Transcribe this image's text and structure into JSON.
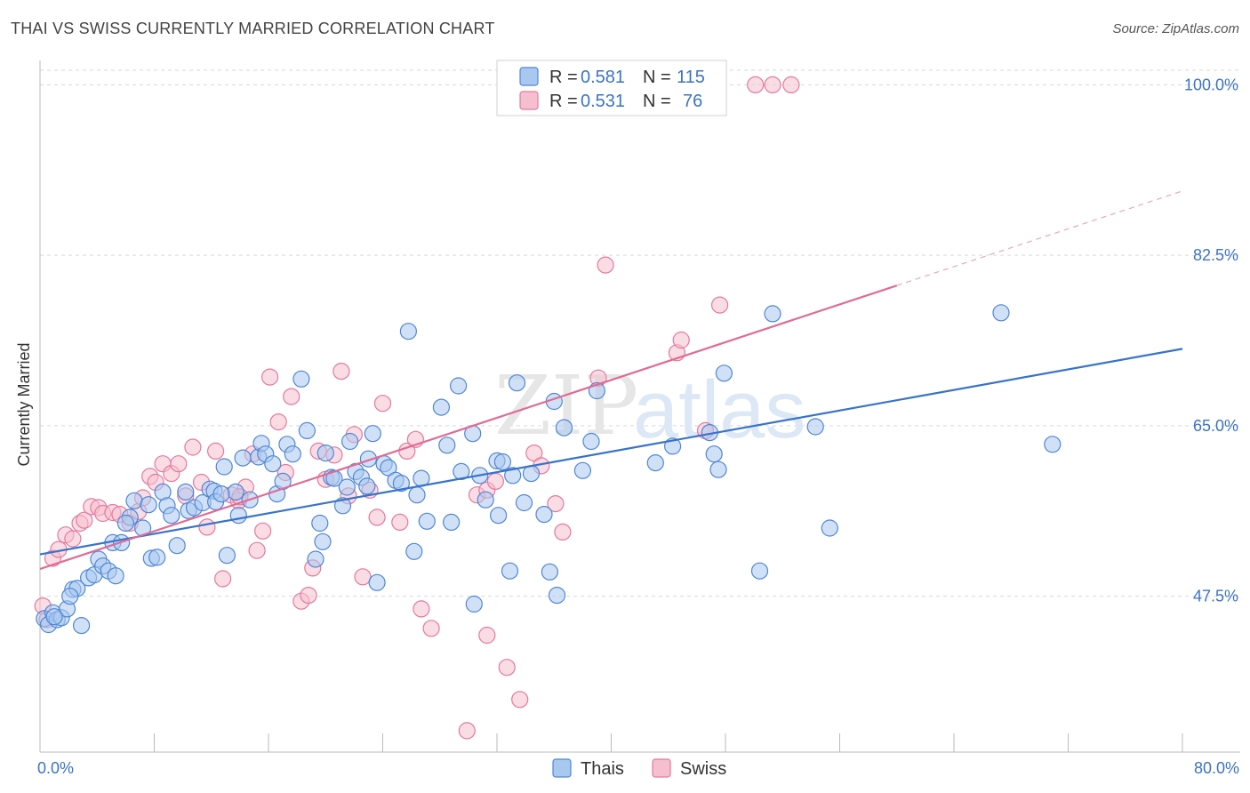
{
  "header": {
    "title": "THAI VS SWISS CURRENTLY MARRIED CORRELATION CHART",
    "source": "Source: ZipAtlas.com"
  },
  "legend": {
    "r_label": "R =",
    "n_label": "N =",
    "thais_r": "0.581",
    "thais_n": "115",
    "swiss_r": "0.531",
    "swiss_n": "76"
  },
  "bottom_legend": {
    "thais": "Thais",
    "swiss": "Swiss"
  },
  "watermark": {
    "zip": "ZIP",
    "atlas": "atlas"
  },
  "colors": {
    "thais_fill": "#a9c8f0",
    "thais_stroke": "#4f87d4",
    "thais_line": "#3673cc",
    "swiss_fill": "#f6bfd0",
    "swiss_stroke": "#e5799d",
    "swiss_line": "#e06b95",
    "grid": "#d9d9d9",
    "tick": "#3b73c8"
  },
  "chart_data": {
    "type": "scatter",
    "title": "THAI VS SWISS CURRENTLY MARRIED CORRELATION CHART",
    "xlabel": "",
    "ylabel": "Currently Married",
    "xlim": [
      0,
      80
    ],
    "ylim": [
      31.5,
      101.5
    ],
    "x_tick_labels": [
      {
        "value": 0,
        "label": "0.0%"
      },
      {
        "value": 80,
        "label": "80.0%"
      }
    ],
    "y_tick_labels": [
      {
        "value": 47.5,
        "label": "47.5%"
      },
      {
        "value": 65.0,
        "label": "65.0%"
      },
      {
        "value": 82.5,
        "label": "82.5%"
      },
      {
        "value": 100.0,
        "label": "100.0%"
      }
    ],
    "y_gridlines": [
      47.5,
      65.0,
      82.5,
      100.0,
      101.5
    ],
    "series": [
      {
        "name": "Thais",
        "R": 0.581,
        "N": 115,
        "trend": {
          "x": [
            0,
            80
          ],
          "y": [
            51.8,
            72.9
          ],
          "dashed_after": null
        },
        "points": [
          [
            0.3,
            45.2
          ],
          [
            0.6,
            44.6
          ],
          [
            0.9,
            45.8
          ],
          [
            1.2,
            45.1
          ],
          [
            1.5,
            45.3
          ],
          [
            1.9,
            46.2
          ],
          [
            2.3,
            48.2
          ],
          [
            2.6,
            48.3
          ],
          [
            2.9,
            44.5
          ],
          [
            3.4,
            49.4
          ],
          [
            3.8,
            49.7
          ],
          [
            4.1,
            51.3
          ],
          [
            4.4,
            50.6
          ],
          [
            4.8,
            50.1
          ],
          [
            5.3,
            49.6
          ],
          [
            5.1,
            53.0
          ],
          [
            5.7,
            53.0
          ],
          [
            6.3,
            55.6
          ],
          [
            6.6,
            57.3
          ],
          [
            7.2,
            54.5
          ],
          [
            7.8,
            51.4
          ],
          [
            8.2,
            51.5
          ],
          [
            8.6,
            58.2
          ],
          [
            8.9,
            56.8
          ],
          [
            9.2,
            55.8
          ],
          [
            9.6,
            52.7
          ],
          [
            10.2,
            58.2
          ],
          [
            10.4,
            56.3
          ],
          [
            10.8,
            56.6
          ],
          [
            11.4,
            57.1
          ],
          [
            11.9,
            58.5
          ],
          [
            12.2,
            58.3
          ],
          [
            12.3,
            57.2
          ],
          [
            12.9,
            60.8
          ],
          [
            13.1,
            51.7
          ],
          [
            13.7,
            58.2
          ],
          [
            13.9,
            55.8
          ],
          [
            14.2,
            61.7
          ],
          [
            14.7,
            57.4
          ],
          [
            15.3,
            61.8
          ],
          [
            15.5,
            63.2
          ],
          [
            15.8,
            62.1
          ],
          [
            16.3,
            61.1
          ],
          [
            16.6,
            58.0
          ],
          [
            17.0,
            59.3
          ],
          [
            17.3,
            63.1
          ],
          [
            17.7,
            62.1
          ],
          [
            18.3,
            69.8
          ],
          [
            18.7,
            64.5
          ],
          [
            19.3,
            51.3
          ],
          [
            19.6,
            55.0
          ],
          [
            19.8,
            53.1
          ],
          [
            20.0,
            62.2
          ],
          [
            20.4,
            59.7
          ],
          [
            20.6,
            59.6
          ],
          [
            21.2,
            56.8
          ],
          [
            21.5,
            58.7
          ],
          [
            21.7,
            63.4
          ],
          [
            22.1,
            60.3
          ],
          [
            22.5,
            59.7
          ],
          [
            22.9,
            58.8
          ],
          [
            23.0,
            61.6
          ],
          [
            23.3,
            64.2
          ],
          [
            23.6,
            48.9
          ],
          [
            24.1,
            61.1
          ],
          [
            24.4,
            60.7
          ],
          [
            24.9,
            59.4
          ],
          [
            25.3,
            59.1
          ],
          [
            25.8,
            74.7
          ],
          [
            26.2,
            52.1
          ],
          [
            26.4,
            57.9
          ],
          [
            26.7,
            59.6
          ],
          [
            27.1,
            55.2
          ],
          [
            28.1,
            66.9
          ],
          [
            28.5,
            63.0
          ],
          [
            28.8,
            55.1
          ],
          [
            29.3,
            69.1
          ],
          [
            29.5,
            60.3
          ],
          [
            30.3,
            64.2
          ],
          [
            30.4,
            46.7
          ],
          [
            30.8,
            59.9
          ],
          [
            31.2,
            57.4
          ],
          [
            32.0,
            61.4
          ],
          [
            32.4,
            61.3
          ],
          [
            32.1,
            55.8
          ],
          [
            32.9,
            50.1
          ],
          [
            33.1,
            59.9
          ],
          [
            33.4,
            69.4
          ],
          [
            33.9,
            57.1
          ],
          [
            34.4,
            60.1
          ],
          [
            35.3,
            55.9
          ],
          [
            35.7,
            50.0
          ],
          [
            36.0,
            67.5
          ],
          [
            36.2,
            47.6
          ],
          [
            36.7,
            64.8
          ],
          [
            38.0,
            60.4
          ],
          [
            38.6,
            63.4
          ],
          [
            39.0,
            68.6
          ],
          [
            43.1,
            61.2
          ],
          [
            44.3,
            62.9
          ],
          [
            46.9,
            64.3
          ],
          [
            47.2,
            62.1
          ],
          [
            47.5,
            60.5
          ],
          [
            47.9,
            70.4
          ],
          [
            50.4,
            50.1
          ],
          [
            51.3,
            76.5
          ],
          [
            54.3,
            64.9
          ],
          [
            55.3,
            54.5
          ],
          [
            67.3,
            76.6
          ],
          [
            70.9,
            63.1
          ],
          [
            12.7,
            58.0
          ],
          [
            7.6,
            56.9
          ],
          [
            2.1,
            47.5
          ],
          [
            1.0,
            45.4
          ],
          [
            6.0,
            55.0
          ]
        ]
      },
      {
        "name": "Swiss",
        "R": 0.531,
        "N": 76,
        "trend": {
          "x": [
            0,
            80
          ],
          "y": [
            50.3,
            89.1
          ],
          "dashed_after": 60
        },
        "points": [
          [
            0.2,
            46.5
          ],
          [
            0.5,
            45.1
          ],
          [
            0.9,
            51.4
          ],
          [
            1.3,
            52.3
          ],
          [
            1.8,
            53.8
          ],
          [
            2.3,
            53.4
          ],
          [
            2.8,
            55.0
          ],
          [
            3.1,
            55.3
          ],
          [
            3.6,
            56.7
          ],
          [
            4.1,
            56.6
          ],
          [
            4.4,
            56.0
          ],
          [
            5.1,
            56.1
          ],
          [
            5.6,
            55.9
          ],
          [
            6.3,
            55.0
          ],
          [
            6.9,
            56.2
          ],
          [
            7.2,
            57.6
          ],
          [
            7.7,
            59.8
          ],
          [
            8.1,
            59.2
          ],
          [
            8.6,
            61.1
          ],
          [
            9.2,
            60.1
          ],
          [
            9.7,
            61.1
          ],
          [
            10.2,
            57.8
          ],
          [
            10.7,
            62.8
          ],
          [
            11.3,
            59.2
          ],
          [
            11.7,
            54.6
          ],
          [
            12.3,
            62.4
          ],
          [
            12.8,
            49.3
          ],
          [
            13.4,
            57.9
          ],
          [
            13.9,
            57.3
          ],
          [
            14.4,
            58.7
          ],
          [
            14.9,
            62.1
          ],
          [
            15.2,
            52.2
          ],
          [
            15.6,
            54.2
          ],
          [
            16.1,
            70.0
          ],
          [
            16.7,
            65.4
          ],
          [
            17.2,
            60.2
          ],
          [
            17.6,
            68.0
          ],
          [
            18.3,
            47.0
          ],
          [
            18.8,
            47.6
          ],
          [
            19.1,
            50.4
          ],
          [
            19.5,
            62.4
          ],
          [
            20.0,
            59.5
          ],
          [
            20.6,
            62.0
          ],
          [
            21.1,
            70.6
          ],
          [
            21.6,
            57.8
          ],
          [
            22.0,
            64.1
          ],
          [
            22.6,
            49.5
          ],
          [
            23.1,
            58.4
          ],
          [
            23.6,
            55.6
          ],
          [
            24.0,
            67.3
          ],
          [
            25.2,
            55.1
          ],
          [
            25.7,
            62.4
          ],
          [
            26.3,
            63.6
          ],
          [
            26.7,
            46.2
          ],
          [
            27.4,
            44.2
          ],
          [
            29.9,
            33.7
          ],
          [
            30.6,
            57.9
          ],
          [
            31.3,
            58.4
          ],
          [
            31.9,
            59.3
          ],
          [
            31.3,
            43.5
          ],
          [
            32.7,
            40.2
          ],
          [
            33.6,
            36.9
          ],
          [
            34.6,
            62.2
          ],
          [
            35.1,
            60.9
          ],
          [
            36.1,
            57.0
          ],
          [
            36.6,
            54.1
          ],
          [
            39.1,
            69.9
          ],
          [
            39.6,
            81.5
          ],
          [
            44.6,
            72.5
          ],
          [
            44.9,
            73.8
          ],
          [
            46.6,
            64.5
          ],
          [
            47.6,
            77.4
          ],
          [
            50.1,
            100.0
          ],
          [
            51.3,
            100.0
          ],
          [
            52.6,
            100.0
          ],
          [
            14.0,
            57.7
          ]
        ]
      }
    ]
  }
}
